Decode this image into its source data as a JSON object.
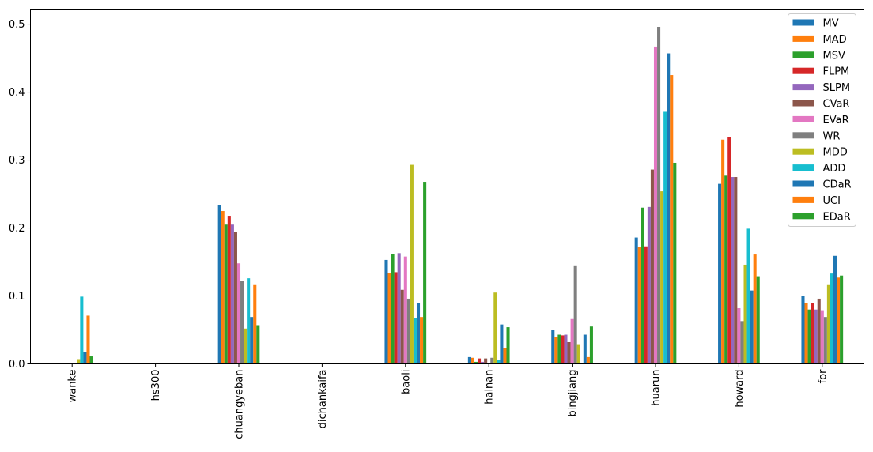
{
  "chart_data": {
    "type": "bar",
    "title": "",
    "xlabel": "",
    "ylabel": "",
    "ylim": [
      0,
      0.521
    ],
    "yticks": [
      0.0,
      0.1,
      0.2,
      0.3,
      0.4,
      0.5
    ],
    "ytick_labels": [
      "0.0",
      "0.1",
      "0.2",
      "0.3",
      "0.4",
      "0.5"
    ],
    "legend_position": "top-right",
    "grid": false,
    "categories": [
      "wanke",
      "hs300",
      "chuangyeban",
      "dichankaifa",
      "baoli",
      "hainan",
      "bingjiang",
      "huarun",
      "howard",
      "for"
    ],
    "series": [
      {
        "name": "MV",
        "color": "#1f77b4",
        "values": [
          0,
          0,
          0.234,
          0,
          0.153,
          0.01,
          0.05,
          0.186,
          0.265,
          0.1
        ]
      },
      {
        "name": "MAD",
        "color": "#ff7f0e",
        "values": [
          0,
          0,
          0.225,
          0,
          0.134,
          0.009,
          0.04,
          0.172,
          0.33,
          0.089
        ]
      },
      {
        "name": "MSV",
        "color": "#2ca02c",
        "values": [
          0,
          0,
          0.205,
          0,
          0.162,
          0.003,
          0.043,
          0.23,
          0.277,
          0.08
        ]
      },
      {
        "name": "FLPM",
        "color": "#d62728",
        "values": [
          0,
          0,
          0.218,
          0,
          0.135,
          0.008,
          0.042,
          0.173,
          0.334,
          0.089
        ]
      },
      {
        "name": "SLPM",
        "color": "#9467bd",
        "values": [
          0,
          0,
          0.205,
          0,
          0.163,
          0.003,
          0.043,
          0.231,
          0.275,
          0.08
        ]
      },
      {
        "name": "CVaR",
        "color": "#8c564b",
        "values": [
          0,
          0,
          0.194,
          0,
          0.109,
          0.008,
          0.032,
          0.286,
          0.275,
          0.096
        ]
      },
      {
        "name": "EVaR",
        "color": "#e377c2",
        "values": [
          0,
          0,
          0.148,
          0,
          0.158,
          0.0,
          0.066,
          0.467,
          0.082,
          0.079
        ]
      },
      {
        "name": "WR",
        "color": "#7f7f7f",
        "values": [
          0,
          0,
          0.122,
          0,
          0.096,
          0.009,
          0.145,
          0.496,
          0.063,
          0.069
        ]
      },
      {
        "name": "MDD",
        "color": "#bcbd22",
        "values": [
          0.007,
          0,
          0.052,
          0,
          0.293,
          0.105,
          0.029,
          0.254,
          0.146,
          0.116
        ]
      },
      {
        "name": "ADD",
        "color": "#17becf",
        "values": [
          0.099,
          0,
          0.126,
          0,
          0.067,
          0.006,
          0.0,
          0.371,
          0.199,
          0.133
        ]
      },
      {
        "name": "CDaR",
        "color": "#1f77b4",
        "values": [
          0.018,
          0,
          0.069,
          0,
          0.089,
          0.058,
          0.043,
          0.457,
          0.108,
          0.159
        ]
      },
      {
        "name": "UCI",
        "color": "#ff7f0e",
        "values": [
          0.071,
          0,
          0.116,
          0,
          0.069,
          0.023,
          0.01,
          0.425,
          0.161,
          0.127
        ]
      },
      {
        "name": "EDaR",
        "color": "#2ca02c",
        "values": [
          0.011,
          0,
          0.057,
          0,
          0.268,
          0.054,
          0.055,
          0.296,
          0.129,
          0.13
        ]
      }
    ]
  }
}
